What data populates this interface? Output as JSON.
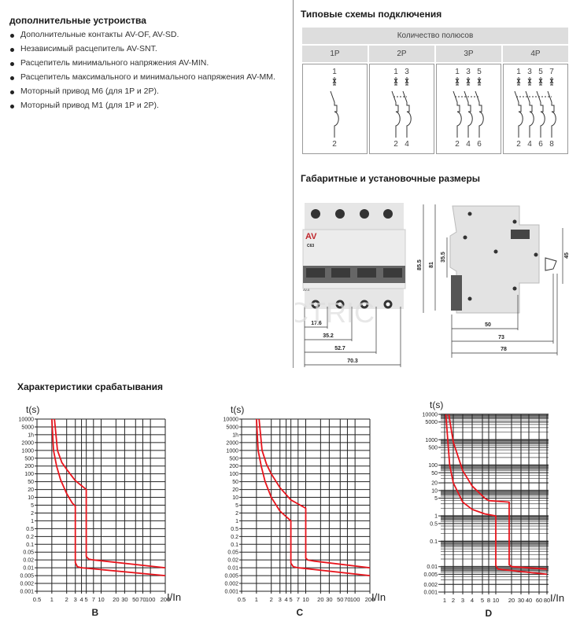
{
  "accessories": {
    "title": "дополнительные устроиства",
    "items": [
      "Дополнительные  контакты AV-OF, AV-SD.",
      "Независимый расцепитель  AV-SNT.",
      "Расцепитель минимального напряжения AV-MIN.",
      "Расцепитель максимального и минимального напряжения AV-MM.",
      "Моторный привод M6 (для 1P и 2P).",
      "Моторный привод M1 (для 1P и 2P)."
    ]
  },
  "schemes": {
    "title": "Типовые схемы подключения",
    "header": "Количество полюсов",
    "columns": [
      {
        "label": "1P",
        "top": [
          "1"
        ],
        "bottom": [
          "2"
        ]
      },
      {
        "label": "2P",
        "top": [
          "1",
          "3"
        ],
        "bottom": [
          "2",
          "4"
        ]
      },
      {
        "label": "3P",
        "top": [
          "1",
          "3",
          "5"
        ],
        "bottom": [
          "2",
          "4",
          "6"
        ]
      },
      {
        "label": "4P",
        "top": [
          "1",
          "3",
          "5",
          "7"
        ],
        "bottom": [
          "2",
          "4",
          "6",
          "8"
        ]
      }
    ]
  },
  "dimensions": {
    "title": "Габаритные и установочные размеры",
    "front": {
      "logo": "AV",
      "model": "C63",
      "series": "AV-6",
      "widths": [
        "17.6",
        "35.2",
        "52.7",
        "70.3"
      ]
    },
    "side": {
      "heights": [
        "85.5",
        "81",
        "35.5",
        "45"
      ],
      "depths": [
        "50",
        "73",
        "78"
      ]
    },
    "watermark": "ROSELECTRIC"
  },
  "characteristics_title": "Характеристики срабатывания",
  "chart_data": [
    {
      "type": "line",
      "title": "B",
      "ylabel": "t(s)",
      "xlabel": "I/In",
      "x_scale": "log",
      "xlim": [
        0.5,
        200
      ],
      "yticks": [
        "10000",
        "5000",
        "1h",
        "2000",
        "1000",
        "500",
        "200",
        "100",
        "50",
        "20",
        "10",
        "5",
        "2",
        "1",
        "0.5",
        "0.2",
        "0.1",
        "0.05",
        "0.02",
        "0.01",
        "0.005",
        "0.002",
        "0.001"
      ],
      "xticks": [
        "0.5",
        "1",
        "2",
        "3",
        "4",
        "5",
        "7",
        "10",
        "20",
        "30",
        "50",
        "70",
        "100",
        "200"
      ],
      "grid": true,
      "color": "#e8141c",
      "series": [
        {
          "points": [
            [
              1,
              10000
            ],
            [
              1.08,
              1000
            ],
            [
              1.25,
              200
            ],
            [
              1.5,
              60
            ],
            [
              2,
              14
            ],
            [
              2.6,
              6
            ],
            [
              3,
              4.5
            ],
            [
              3,
              0.016
            ],
            [
              3.3,
              0.011
            ],
            [
              4,
              0.01
            ],
            [
              200,
              0.005
            ]
          ]
        },
        {
          "points": [
            [
              1.13,
              10000
            ],
            [
              1.3,
              1000
            ],
            [
              1.6,
              300
            ],
            [
              2,
              150
            ],
            [
              3,
              55
            ],
            [
              5,
              20
            ],
            [
              5,
              0.03
            ],
            [
              5.6,
              0.022
            ],
            [
              7,
              0.02
            ],
            [
              200,
              0.01
            ]
          ]
        }
      ]
    },
    {
      "type": "line",
      "title": "C",
      "ylabel": "t(s)",
      "xlabel": "I/In",
      "x_scale": "log",
      "xlim": [
        0.5,
        200
      ],
      "yticks": [
        "10000",
        "5000",
        "1h",
        "2000",
        "1000",
        "500",
        "200",
        "100",
        "50",
        "20",
        "10",
        "5",
        "2",
        "1",
        "0.5",
        "0.2",
        "0.1",
        "0.05",
        "0.02",
        "0.01",
        "0.005",
        "0.002",
        "0.001"
      ],
      "xticks": [
        "0.5",
        "1",
        "2",
        "3",
        "4",
        "5",
        "7",
        "10",
        "20",
        "30",
        "50",
        "70",
        "100",
        "200"
      ],
      "grid": true,
      "color": "#e8141c",
      "series": [
        {
          "points": [
            [
              1,
              10000
            ],
            [
              1.08,
              1000
            ],
            [
              1.25,
              200
            ],
            [
              1.5,
              50
            ],
            [
              2,
              10
            ],
            [
              3,
              2.5
            ],
            [
              5,
              1
            ],
            [
              5,
              0.015
            ],
            [
              5.6,
              0.011
            ],
            [
              7,
              0.01
            ],
            [
              200,
              0.005
            ]
          ]
        },
        {
          "points": [
            [
              1.13,
              10000
            ],
            [
              1.3,
              1000
            ],
            [
              1.6,
              250
            ],
            [
              2,
              100
            ],
            [
              3,
              25
            ],
            [
              5,
              8
            ],
            [
              10,
              3.5
            ],
            [
              10,
              0.025
            ],
            [
              11,
              0.02
            ],
            [
              15,
              0.018
            ],
            [
              200,
              0.01
            ]
          ]
        }
      ]
    },
    {
      "type": "line",
      "title": "D",
      "ylabel": "t(s)",
      "xlabel": "I/In",
      "y_scale": "log",
      "ylim": [
        0.001,
        10000
      ],
      "yticks": [
        "10000",
        "5000",
        "1000",
        "500",
        "100",
        "50",
        "20",
        "10",
        "5",
        "1",
        "0.5",
        "0.1",
        "0.01",
        "0.005",
        "0.002",
        "0.001"
      ],
      "xticks": [
        "1",
        "2",
        "3",
        "4",
        "5",
        "8",
        "10",
        "20",
        "30",
        "40",
        "60",
        "80"
      ],
      "grid": true,
      "color": "#e8141c",
      "series": [
        {
          "points": [
            [
              1.1,
              10000
            ],
            [
              1.5,
              100
            ],
            [
              2,
              20
            ],
            [
              3,
              3.5
            ],
            [
              4,
              1.8
            ],
            [
              6,
              1.2
            ],
            [
              10,
              1
            ],
            [
              10,
              0.011
            ],
            [
              11,
              0.008
            ],
            [
              80,
              0.005
            ]
          ]
        },
        {
          "points": [
            [
              1.4,
              10000
            ],
            [
              2,
              800
            ],
            [
              3,
              60
            ],
            [
              4,
              15
            ],
            [
              6,
              5
            ],
            [
              8,
              4
            ],
            [
              18,
              3.5
            ],
            [
              18,
              0.012
            ],
            [
              20,
              0.01
            ],
            [
              80,
              0.008
            ]
          ]
        }
      ]
    }
  ]
}
